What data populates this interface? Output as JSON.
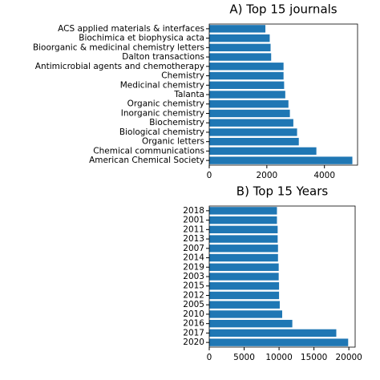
{
  "chart_data": [
    {
      "type": "barh",
      "title": "A) Top 15 journals",
      "color": "#1f77b4",
      "categories": [
        "ACS applied materials & interfaces",
        "Biochimica et biophysica acta",
        "Bioorganic & medicinal chemistry letters",
        "Dalton transactions",
        "Antimicrobial agents and chemotherapy",
        "Chemistry",
        "Medicinal chemistry",
        "Talanta",
        "Organic chemistry",
        "Inorganic chemistry",
        "Biochemistry",
        "Biological chemistry",
        "Organic letters",
        "Chemical communications",
        "American Chemical Society"
      ],
      "values": [
        1950,
        2100,
        2130,
        2150,
        2580,
        2580,
        2600,
        2640,
        2750,
        2800,
        2920,
        3050,
        3110,
        3720,
        4970
      ],
      "xlim": [
        0,
        5150
      ],
      "xticks": [
        0,
        2000,
        4000
      ]
    },
    {
      "type": "barh",
      "title": "B) Top 15 Years",
      "color": "#1f77b4",
      "categories": [
        "2018",
        "2001",
        "2011",
        "2013",
        "2007",
        "2014",
        "2019",
        "2003",
        "2015",
        "2012",
        "2005",
        "2010",
        "2016",
        "2017",
        "2020"
      ],
      "values": [
        9700,
        9700,
        9800,
        9800,
        9850,
        9850,
        9950,
        9950,
        10000,
        10000,
        10100,
        10450,
        11900,
        18200,
        19900
      ],
      "xlim": [
        0,
        20900
      ],
      "xticks": [
        0,
        5000,
        10000,
        15000,
        20000
      ]
    }
  ]
}
